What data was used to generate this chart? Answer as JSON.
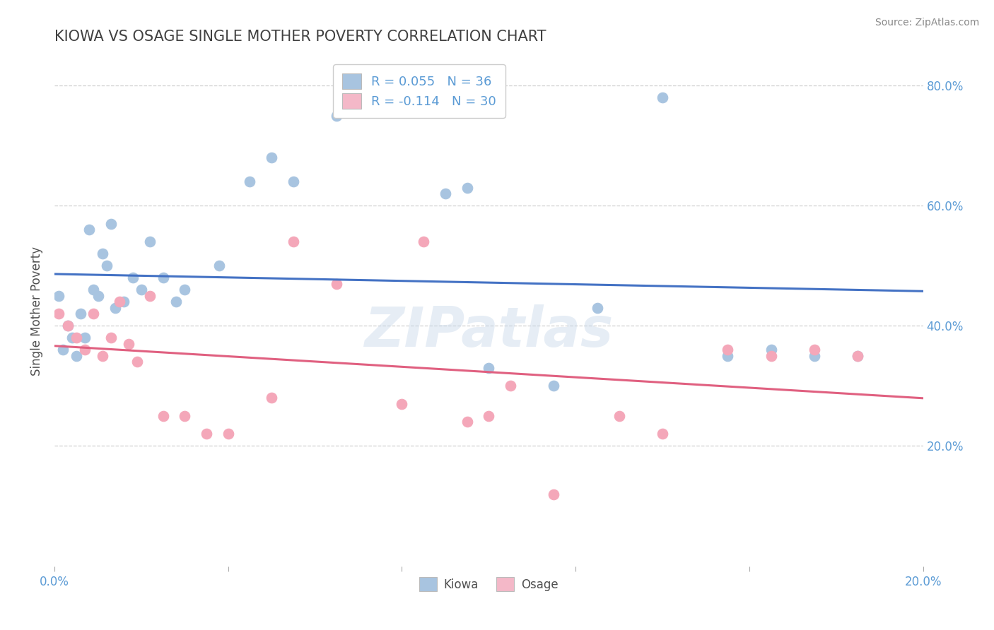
{
  "title": "KIOWA VS OSAGE SINGLE MOTHER POVERTY CORRELATION CHART",
  "source": "Source: ZipAtlas.com",
  "ylabel": "Single Mother Poverty",
  "xlim": [
    0.0,
    0.2
  ],
  "ylim": [
    0.0,
    0.85
  ],
  "x_ticks": [
    0.0,
    0.04,
    0.08,
    0.12,
    0.16,
    0.2
  ],
  "y_ticks": [
    0.0,
    0.2,
    0.4,
    0.6,
    0.8
  ],
  "y_tick_labels_right": [
    "",
    "20.0%",
    "40.0%",
    "60.0%",
    "80.0%"
  ],
  "kiowa_R": 0.055,
  "kiowa_N": 36,
  "osage_R": -0.114,
  "osage_N": 30,
  "kiowa_color": "#a8c4e0",
  "osage_color": "#f4a7b9",
  "kiowa_line_color": "#4472c4",
  "osage_line_color": "#e06080",
  "kiowa_legend_color": "#a8c4e0",
  "osage_legend_color": "#f4b8c8",
  "title_color": "#404040",
  "axis_color": "#5b9bd5",
  "grid_color": "#d0d0d0",
  "watermark": "ZIPatlas",
  "kiowa_x": [
    0.001,
    0.002,
    0.003,
    0.004,
    0.005,
    0.006,
    0.007,
    0.008,
    0.009,
    0.01,
    0.011,
    0.012,
    0.013,
    0.014,
    0.016,
    0.018,
    0.02,
    0.022,
    0.025,
    0.028,
    0.03,
    0.038,
    0.045,
    0.05,
    0.055,
    0.065,
    0.09,
    0.095,
    0.1,
    0.115,
    0.125,
    0.14,
    0.155,
    0.165,
    0.175,
    0.185
  ],
  "kiowa_y": [
    0.45,
    0.36,
    0.4,
    0.38,
    0.35,
    0.42,
    0.38,
    0.56,
    0.46,
    0.45,
    0.52,
    0.5,
    0.57,
    0.43,
    0.44,
    0.48,
    0.46,
    0.54,
    0.48,
    0.44,
    0.46,
    0.5,
    0.64,
    0.68,
    0.64,
    0.75,
    0.62,
    0.63,
    0.33,
    0.3,
    0.43,
    0.78,
    0.35,
    0.36,
    0.35,
    0.35
  ],
  "osage_x": [
    0.001,
    0.003,
    0.005,
    0.007,
    0.009,
    0.011,
    0.013,
    0.015,
    0.017,
    0.019,
    0.022,
    0.025,
    0.03,
    0.035,
    0.04,
    0.05,
    0.055,
    0.065,
    0.08,
    0.085,
    0.095,
    0.1,
    0.105,
    0.115,
    0.13,
    0.14,
    0.155,
    0.165,
    0.175,
    0.185
  ],
  "osage_y": [
    0.42,
    0.4,
    0.38,
    0.36,
    0.42,
    0.35,
    0.38,
    0.44,
    0.37,
    0.34,
    0.45,
    0.25,
    0.25,
    0.22,
    0.22,
    0.28,
    0.54,
    0.47,
    0.27,
    0.54,
    0.24,
    0.25,
    0.3,
    0.12,
    0.25,
    0.22,
    0.36,
    0.35,
    0.36,
    0.35
  ]
}
